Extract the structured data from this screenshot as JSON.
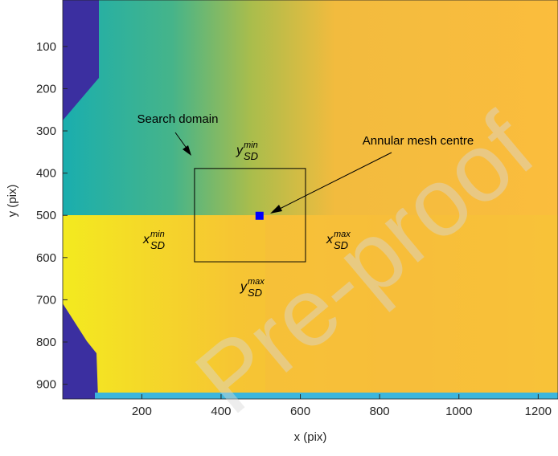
{
  "chart_data": {
    "type": "image",
    "xlabel": "x (pix)",
    "ylabel": "y (pix)",
    "xlim": [
      0.5,
      1250
    ],
    "ylim": [
      -10,
      935
    ],
    "y_reversed": true,
    "xticks": [
      200,
      400,
      600,
      800,
      1000,
      1200
    ],
    "yticks": [
      100,
      200,
      300,
      400,
      500,
      600,
      700,
      800,
      900
    ],
    "search_domain": {
      "name": "Search domain",
      "x": [
        333,
        613
      ],
      "y": [
        389,
        610
      ],
      "color": "#000000"
    },
    "mesh_centre": {
      "name": "Annular mesh centre",
      "x": 497,
      "y": 501,
      "color": "#0000ff"
    },
    "bound_labels": [
      {
        "letter": "y",
        "sub": "SD",
        "sup": "min"
      },
      {
        "letter": "x",
        "sub": "SD",
        "sup": "min"
      },
      {
        "letter": "x",
        "sub": "SD",
        "sup": "max"
      },
      {
        "letter": "y",
        "sub": "SD",
        "sup": "max"
      }
    ],
    "watermark": "Pre-proof"
  }
}
